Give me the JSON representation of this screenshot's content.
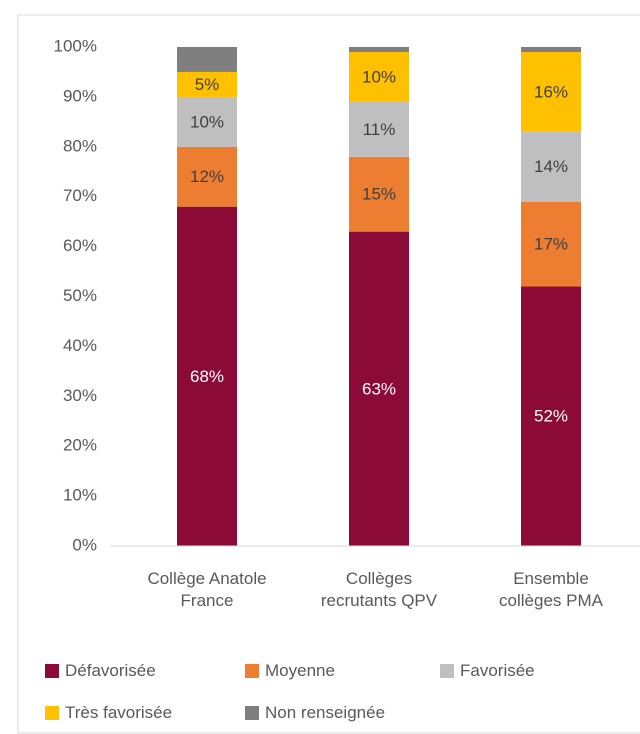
{
  "chart_data": {
    "type": "stacked_bar",
    "categories": [
      "Collège Anatole France",
      "Collèges recrutants QPV",
      "Ensemble collèges PMA"
    ],
    "series": [
      {
        "name": "Défavorisée",
        "color": "#8b0a36",
        "values": [
          68,
          63,
          52
        ],
        "value_labels": [
          "68%",
          "63%",
          "52%"
        ]
      },
      {
        "name": "Moyenne",
        "color": "#ed7d31",
        "values": [
          12,
          15,
          17
        ],
        "value_labels": [
          "12%",
          "15%",
          "17%"
        ]
      },
      {
        "name": "Favorisée",
        "color": "#bfbfbf",
        "values": [
          10,
          11,
          14
        ],
        "value_labels": [
          "10%",
          "11%",
          "14%"
        ]
      },
      {
        "name": "Très favorisée",
        "color": "#ffc000",
        "values": [
          5,
          10,
          16
        ],
        "value_labels": [
          "5%",
          "10%",
          "16%"
        ]
      },
      {
        "name": "Non renseignée",
        "color": "#7f7f7f",
        "values": [
          5,
          1,
          1
        ]
      }
    ],
    "ylim": [
      0,
      100
    ],
    "yticks": [
      {
        "value": 0,
        "label": "0%"
      },
      {
        "value": 10,
        "label": "10%"
      },
      {
        "value": 20,
        "label": "20%"
      },
      {
        "value": 30,
        "label": "30%"
      },
      {
        "value": 40,
        "label": "40%"
      },
      {
        "value": 50,
        "label": "50%"
      },
      {
        "value": 60,
        "label": "60%"
      },
      {
        "value": 70,
        "label": "70%"
      },
      {
        "value": 80,
        "label": "80%"
      },
      {
        "value": 90,
        "label": "90%"
      },
      {
        "value": 100,
        "label": "100%"
      }
    ],
    "grid": false
  }
}
